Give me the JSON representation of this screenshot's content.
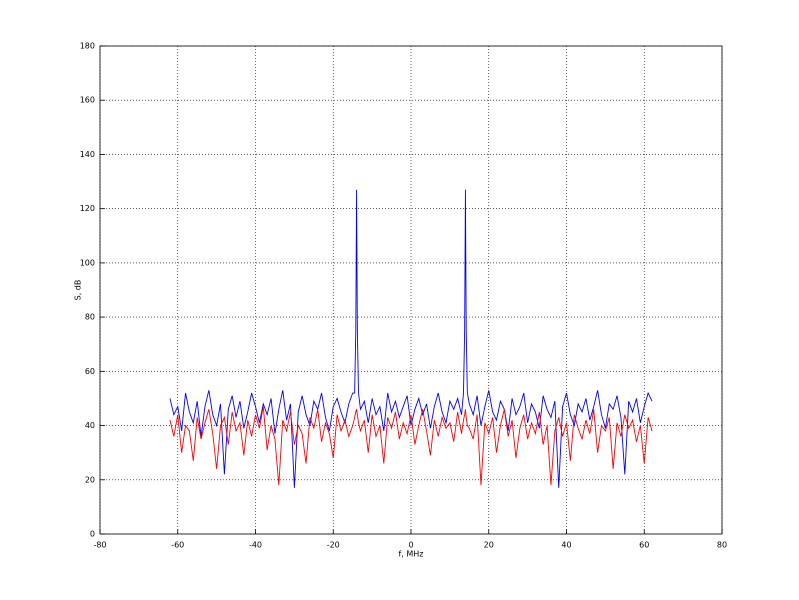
{
  "chart_data": {
    "type": "line",
    "xlabel": "f, MHz",
    "ylabel": "S, dB",
    "xlim": [
      -80,
      80
    ],
    "xticks": [
      -80,
      -60,
      -40,
      -20,
      0,
      20,
      40,
      60,
      80
    ],
    "ylim": [
      0,
      180
    ],
    "yticks": [
      0,
      20,
      40,
      60,
      80,
      100,
      120,
      140,
      160,
      180
    ],
    "grid": true,
    "x": [
      -62,
      -61,
      -60,
      -59,
      -58,
      -57,
      -56,
      -55,
      -54,
      -53,
      -52,
      -51,
      -50,
      -49,
      -48,
      -47,
      -46,
      -45,
      -44,
      -43,
      -42,
      -41,
      -40,
      -39,
      -38,
      -37,
      -36,
      -35,
      -34,
      -33,
      -32,
      -31,
      -30,
      -29,
      -28,
      -27,
      -26,
      -25,
      -24,
      -23,
      -22,
      -21,
      -20,
      -19,
      -18,
      -17,
      -16,
      -15,
      -14.5,
      -14.2,
      -14,
      -13.8,
      -13.5,
      -13,
      -12,
      -11,
      -10,
      -9,
      -8,
      -7,
      -6,
      -5,
      -4,
      -3,
      -2,
      -1,
      0,
      1,
      2,
      3,
      4,
      5,
      6,
      7,
      8,
      9,
      10,
      11,
      12,
      13,
      13.5,
      13.8,
      14,
      14.2,
      14.5,
      15,
      16,
      17,
      18,
      19,
      20,
      21,
      22,
      23,
      24,
      25,
      26,
      27,
      28,
      29,
      30,
      31,
      32,
      33,
      34,
      35,
      36,
      37,
      38,
      39,
      40,
      41,
      42,
      43,
      44,
      45,
      46,
      47,
      48,
      49,
      50,
      51,
      52,
      53,
      54,
      55,
      56,
      57,
      58,
      59,
      60,
      61,
      62
    ],
    "series": [
      {
        "color": "#0000ff",
        "values": [
          50,
          44,
          47,
          38,
          52,
          45,
          41,
          49,
          36,
          47,
          53,
          44,
          40,
          48,
          22,
          46,
          51,
          43,
          49,
          39,
          45,
          52,
          47,
          41,
          48,
          44,
          50,
          37,
          46,
          53,
          42,
          48,
          17,
          45,
          51,
          44,
          40,
          49,
          46,
          52,
          43,
          38,
          47,
          50,
          45,
          41,
          48,
          52,
          52,
          75,
          127,
          75,
          52,
          46,
          49,
          41,
          50,
          44,
          47,
          38,
          52,
          45,
          49,
          43,
          47,
          51,
          40,
          46,
          50,
          44,
          48,
          39,
          47,
          52,
          45,
          41,
          49,
          46,
          50,
          44,
          52,
          75,
          127,
          75,
          52,
          48,
          44,
          51,
          40,
          47,
          53,
          45,
          42,
          49,
          46,
          38,
          50,
          44,
          47,
          52,
          41,
          48,
          45,
          39,
          51,
          46,
          43,
          49,
          17,
          47,
          52,
          44,
          40,
          48,
          45,
          50,
          42,
          47,
          53,
          44,
          39,
          48,
          46,
          51,
          43,
          22,
          49,
          45,
          50,
          41,
          47,
          52,
          49
        ]
      },
      {
        "color": "#ff0000",
        "values": [
          42,
          36,
          44,
          30,
          40,
          38,
          27,
          43,
          35,
          41,
          46,
          37,
          24,
          40,
          43,
          33,
          45,
          38,
          41,
          29,
          42,
          36,
          44,
          39,
          47,
          31,
          40,
          35,
          18,
          42,
          38,
          45,
          33,
          40,
          37,
          26,
          43,
          39,
          46,
          34,
          41,
          37,
          28,
          44,
          38,
          42,
          36,
          40,
          43,
          45,
          46,
          44,
          41,
          38,
          42,
          30,
          44,
          36,
          40,
          26,
          43,
          39,
          45,
          35,
          41,
          37,
          44,
          33,
          40,
          46,
          38,
          29,
          42,
          36,
          43,
          39,
          41,
          34,
          45,
          37,
          42,
          44,
          46,
          43,
          40,
          39,
          35,
          44,
          18,
          41,
          37,
          43,
          30,
          40,
          46,
          36,
          42,
          28,
          39,
          44,
          35,
          41,
          37,
          45,
          33,
          40,
          18,
          38,
          43,
          36,
          41,
          27,
          44,
          39,
          35,
          42,
          37,
          46,
          30,
          40,
          38,
          43,
          24,
          41,
          36,
          44,
          39,
          42,
          34,
          40,
          26,
          43,
          38
        ]
      }
    ]
  }
}
